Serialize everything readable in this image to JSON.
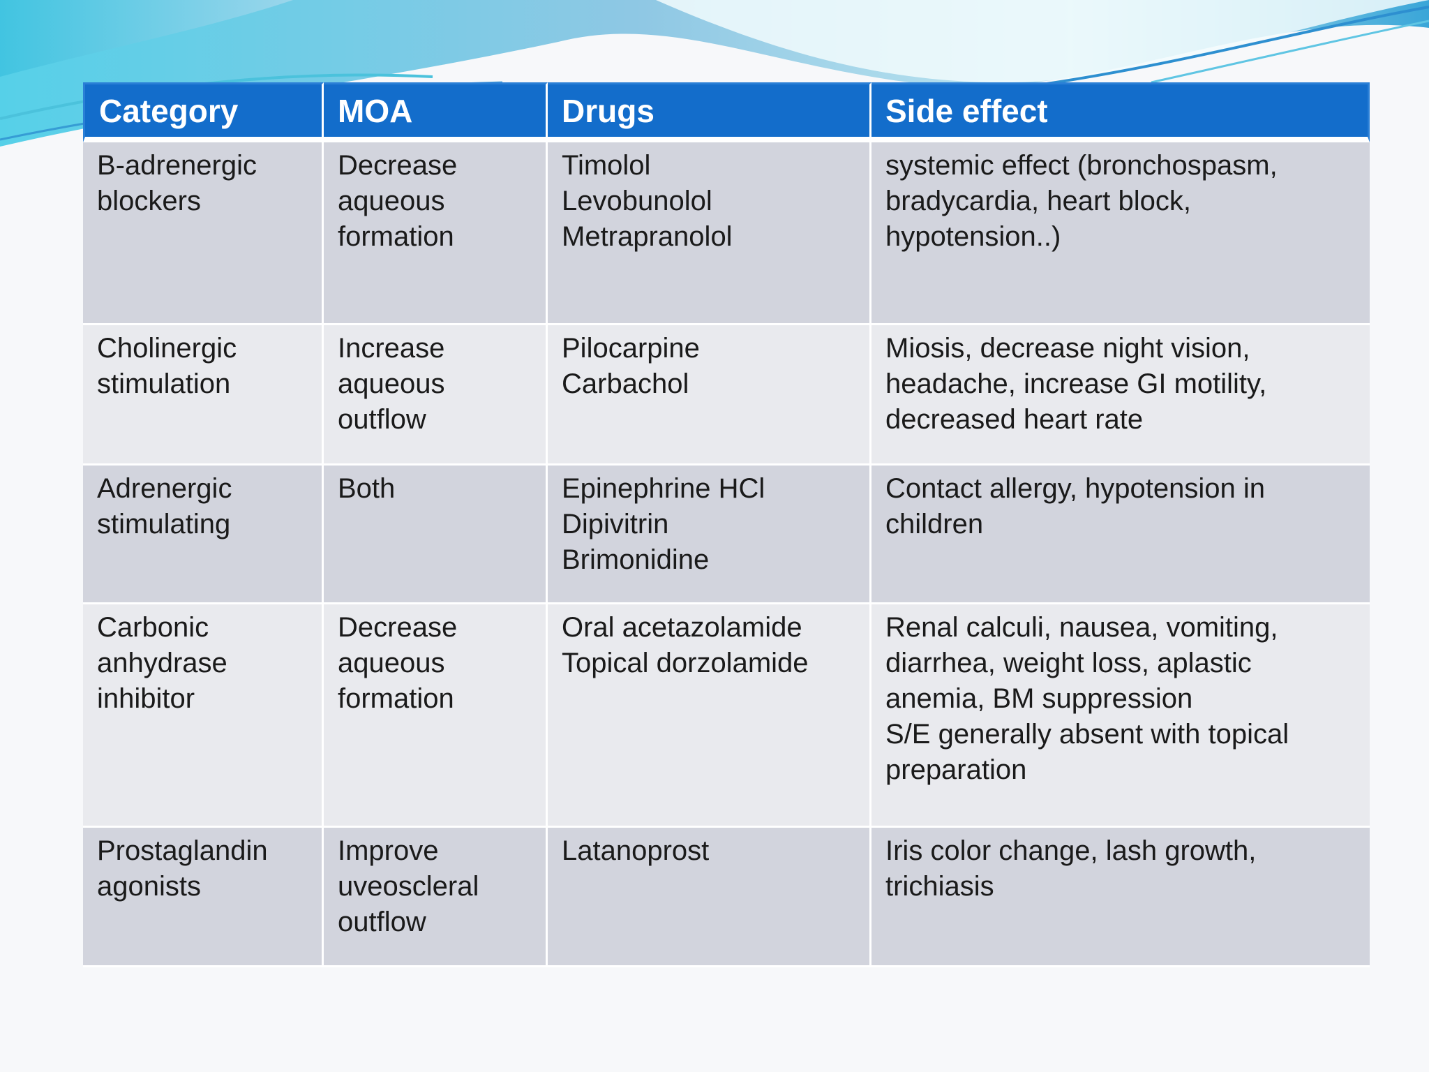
{
  "table": {
    "headers": [
      "Category",
      "MOA",
      "Drugs",
      "Side effect"
    ],
    "rows": [
      {
        "category": "B-adrenergic\nblockers",
        "moa": "Decrease\naqueous\nformation",
        "drugs": "Timolol\nLevobunolol\nMetrapranolol",
        "side_effect": "systemic effect (bronchospasm,\nbradycardia, heart block,\nhypotension..)"
      },
      {
        "category": "Cholinergic\nstimulation",
        "moa": "Increase\naqueous\noutflow",
        "drugs": "Pilocarpine\nCarbachol",
        "side_effect": "Miosis, decrease night vision,\nheadache, increase GI motility,\ndecreased heart rate"
      },
      {
        "category": "Adrenergic\nstimulating",
        "moa": "Both",
        "drugs": "Epinephrine HCl\nDipivitrin\nBrimonidine",
        "side_effect": "Contact allergy, hypotension in\nchildren"
      },
      {
        "category": "Carbonic\nanhydrase\ninhibitor",
        "moa": "Decrease\naqueous\nformation",
        "drugs": "Oral acetazolamide\nTopical dorzolamide",
        "side_effect": "Renal calculi, nausea, vomiting,\ndiarrhea, weight loss, aplastic\nanemia, BM suppression\nS/E generally absent with topical\npreparation"
      },
      {
        "category": "Prostaglandin\nagonists",
        "moa": "Improve\nuveoscleral\noutflow",
        "drugs": "Latanoprost",
        "side_effect": "Iris color change, lash growth,\ntrichiasis"
      }
    ]
  },
  "colors": {
    "header_bg": "#136dcb",
    "row_dark": "#d2d4dd",
    "row_light": "#e9eaee",
    "wave_teal": "#6fd3e6",
    "wave_blue": "#2d8fd0"
  }
}
